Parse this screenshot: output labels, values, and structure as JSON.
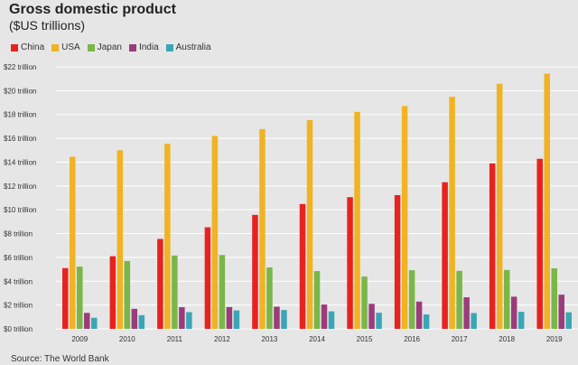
{
  "title": "Gross domestic product",
  "subtitle": "($US trillions)",
  "source": "Source: The World Bank",
  "colors": {
    "China": "#e8221f",
    "USA": "#f0b323",
    "Japan": "#7ab648",
    "India": "#9b3c7a",
    "Australia": "#3aa6b5"
  },
  "chart_data": {
    "type": "bar",
    "title": "Gross domestic product",
    "subtitle": "($US trillions)",
    "xlabel": "",
    "ylabel": "",
    "ylim": [
      0,
      22
    ],
    "yticks": [
      0,
      2,
      4,
      6,
      8,
      10,
      12,
      14,
      16,
      18,
      20,
      22
    ],
    "ytick_labels": [
      "$0 trillion",
      "$2 trillion",
      "$4 trillion",
      "$6 trillion",
      "$8 trillion",
      "$10 trillion",
      "$12 trillion",
      "$14 trillion",
      "$16 trillion",
      "$18 trillion",
      "$20 trillion",
      "$22 trillion"
    ],
    "grid": true,
    "legend_position": "top-left",
    "categories": [
      "2009",
      "2010",
      "2011",
      "2012",
      "2013",
      "2014",
      "2015",
      "2016",
      "2017",
      "2018",
      "2019"
    ],
    "series": [
      {
        "name": "China",
        "values": [
          5.1,
          6.1,
          7.55,
          8.53,
          9.57,
          10.48,
          11.06,
          11.23,
          12.31,
          13.89,
          14.28
        ]
      },
      {
        "name": "USA",
        "values": [
          14.45,
          14.99,
          15.54,
          16.2,
          16.78,
          17.53,
          18.22,
          18.71,
          19.49,
          20.58,
          21.43
        ]
      },
      {
        "name": "Japan",
        "values": [
          5.23,
          5.7,
          6.16,
          6.2,
          5.16,
          4.85,
          4.39,
          4.92,
          4.87,
          4.95,
          5.08
        ]
      },
      {
        "name": "India",
        "values": [
          1.34,
          1.68,
          1.82,
          1.83,
          1.86,
          2.04,
          2.1,
          2.29,
          2.65,
          2.7,
          2.87
        ]
      },
      {
        "name": "Australia",
        "values": [
          0.93,
          1.15,
          1.4,
          1.55,
          1.58,
          1.47,
          1.35,
          1.21,
          1.33,
          1.43,
          1.39
        ]
      }
    ]
  }
}
